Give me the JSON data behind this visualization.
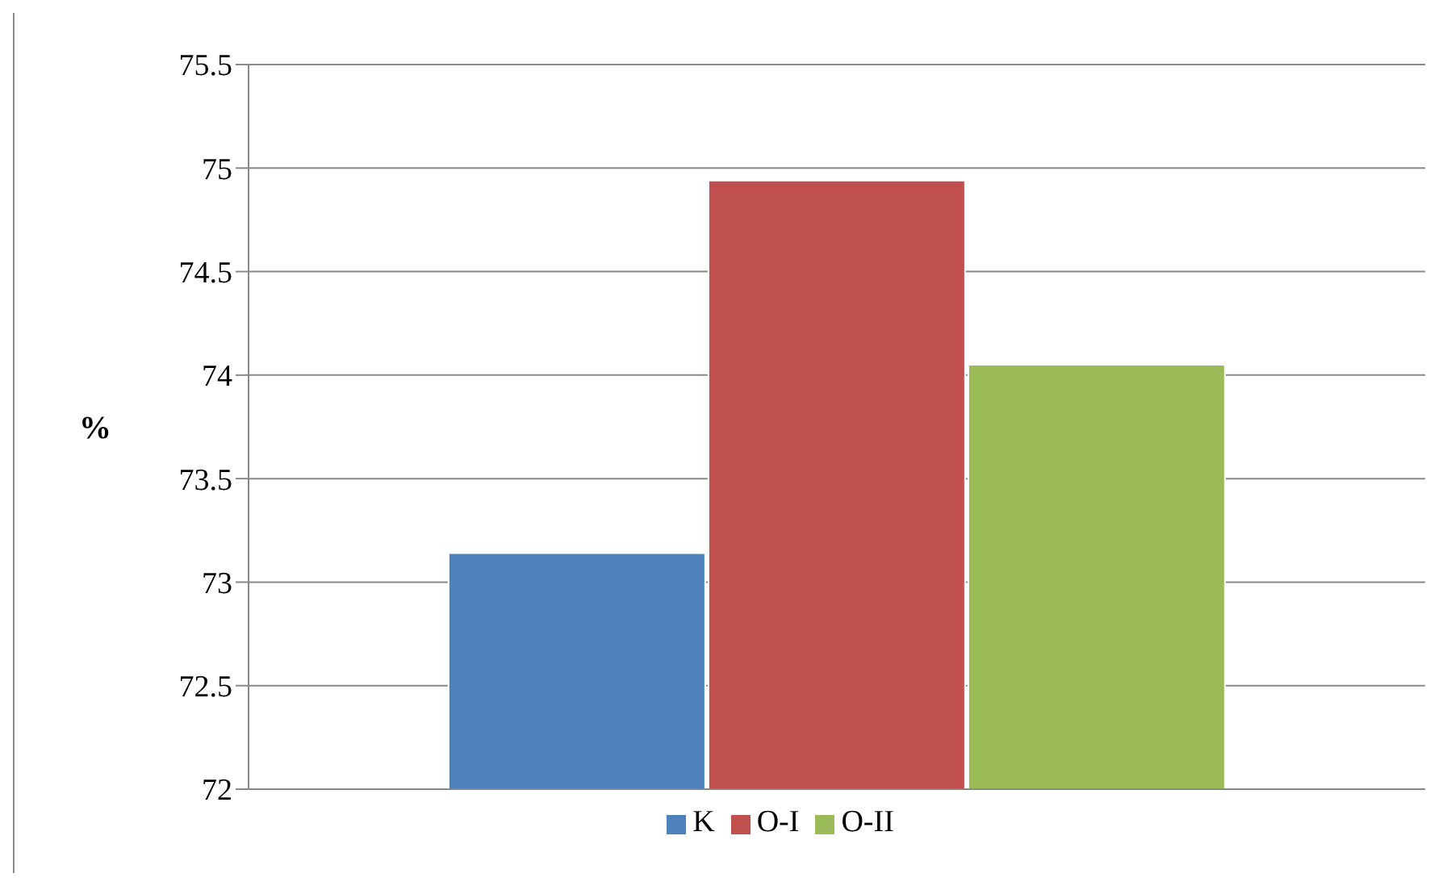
{
  "chart_data": {
    "type": "bar",
    "ylabel": "%",
    "categories": [
      null
    ],
    "series": [
      {
        "name": "K",
        "color": "#4f81bd",
        "values": [
          73.14
        ]
      },
      {
        "name": "O-I",
        "color": "#c0504d",
        "values": [
          74.94
        ]
      },
      {
        "name": "O-II",
        "color": "#9bbb59",
        "values": [
          74.05
        ]
      }
    ],
    "ylim": [
      72,
      75.5
    ],
    "yticks": [
      72,
      72.5,
      73,
      73.5,
      74,
      74.5,
      75,
      75.5
    ],
    "grid": "y",
    "legend": "bottom"
  }
}
